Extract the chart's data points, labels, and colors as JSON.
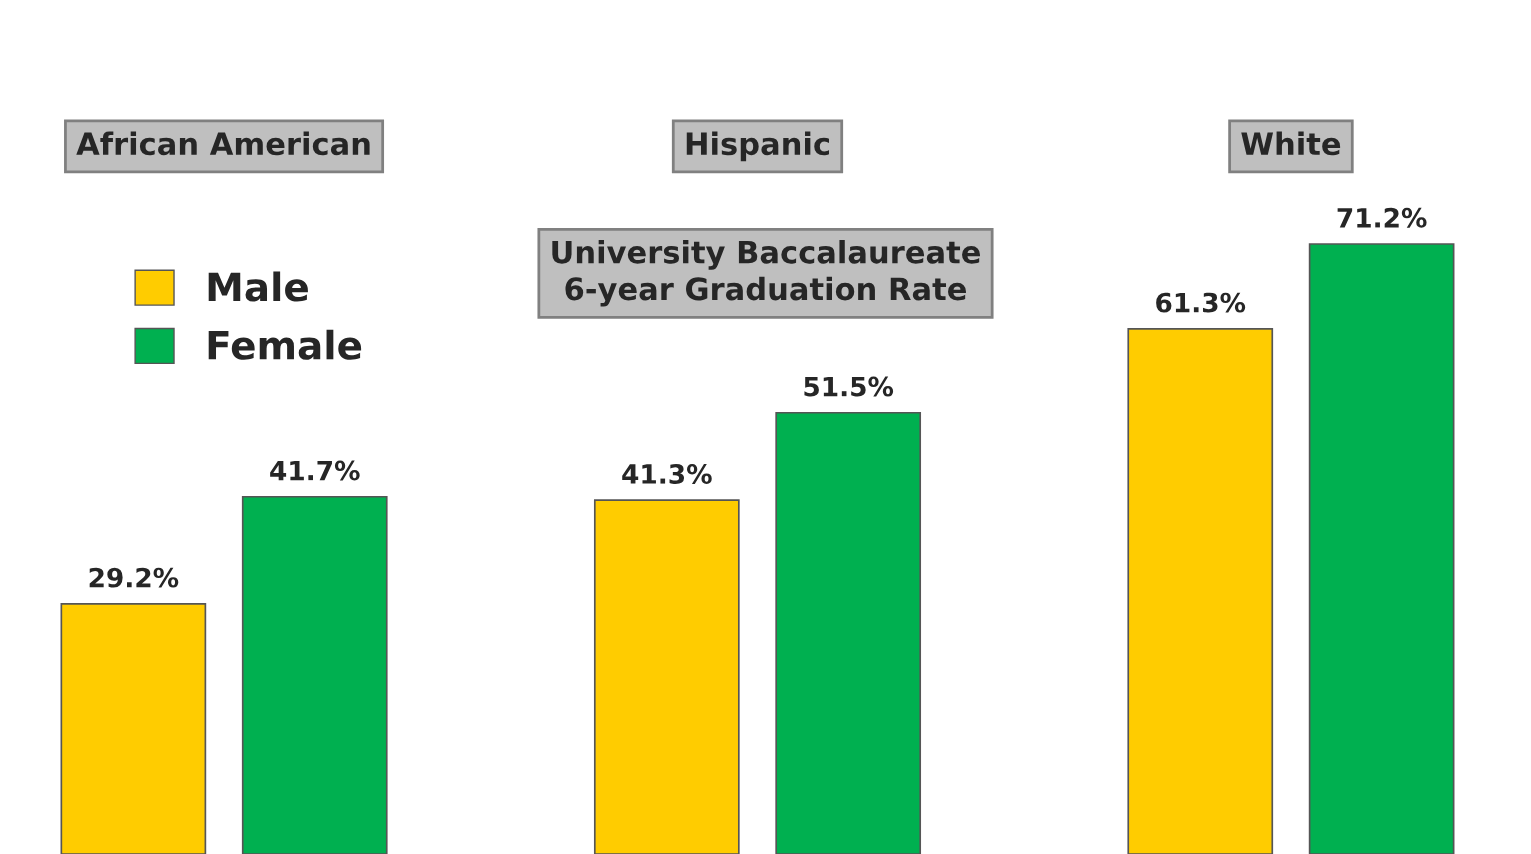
{
  "chart_data": {
    "type": "bar",
    "title": "University Baccalaureate\n6-year Graduation Rate",
    "categories": [
      "African American",
      "Hispanic",
      "White"
    ],
    "series": [
      {
        "name": "Male",
        "color": "#ffcc00",
        "values": [
          29.2,
          41.3,
          61.3
        ],
        "value_labels": [
          "29.2%",
          "41.3%",
          "61.3%"
        ]
      },
      {
        "name": "Female",
        "color": "#00b050",
        "values": [
          41.7,
          51.5,
          71.2
        ],
        "value_labels": [
          "41.7%",
          "51.5%",
          "71.2%"
        ]
      }
    ],
    "legend": "top left"
  }
}
